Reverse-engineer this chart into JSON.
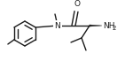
{
  "bg_color": "#ffffff",
  "bond_color": "#1a1a1a",
  "bond_lw": 1.0,
  "figsize": [
    1.41,
    0.77
  ],
  "dpi": 100,
  "xlim": [
    0,
    141
  ],
  "ylim": [
    0,
    77
  ]
}
